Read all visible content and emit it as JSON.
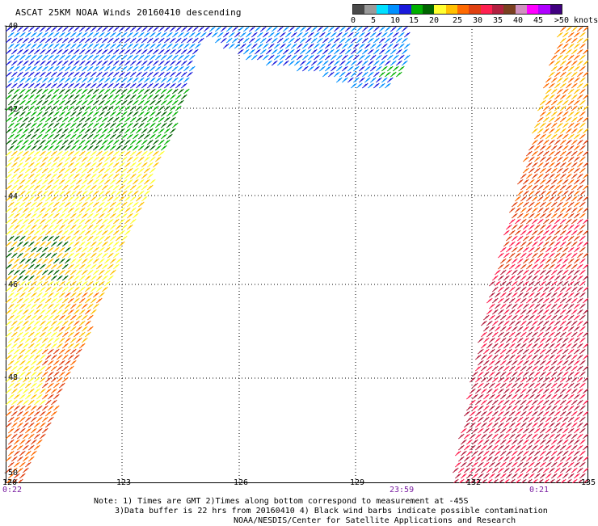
{
  "header": {
    "title": "ASCAT 25KM NOAA Winds 20160410 descending"
  },
  "color_scale": {
    "colors": [
      "#4a4a4a",
      "#9a9a9a",
      "#00e0ff",
      "#0090ff",
      "#1a1adc",
      "#00b000",
      "#006400",
      "#ffff30",
      "#ffc000",
      "#ff6a00",
      "#e04010",
      "#ff2050",
      "#b22040",
      "#7a4020",
      "#d090c0",
      "#ff00ff",
      "#b000ff",
      "#400080"
    ],
    "labels": [
      "0",
      "5",
      "10",
      "15",
      "20",
      "25",
      "30",
      "35",
      "40",
      "45",
      ">50 knots"
    ]
  },
  "axes": {
    "lon_labels": [
      "120",
      "123",
      "126",
      "129",
      "132",
      "135"
    ],
    "lat_labels": [
      "-40",
      "-42",
      "-44",
      "-46",
      "-48",
      "-50"
    ]
  },
  "time_labels": [
    "0:22",
    "23:59",
    "0:21"
  ],
  "notes": [
    "Note: 1) Times are GMT 2)Times along bottom correspond to measurement at -45S",
    "3)Data buffer is 22 hrs from 20160410 4) Black wind barbs indicate possible contamination",
    "NOAA/NESDIS/Center for Satellite Applications and Research"
  ]
}
